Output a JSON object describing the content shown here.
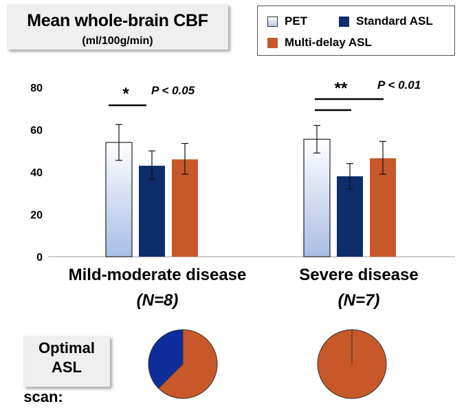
{
  "title": {
    "main": "Mean whole-brain CBF",
    "sub": "(ml/100g/min)"
  },
  "legend": [
    {
      "label": "PET",
      "color": "#dbe4f5"
    },
    {
      "label": "Standard ASL",
      "color": "#0d2d6b"
    },
    {
      "label": "Multi-delay ASL",
      "color": "#c8582a"
    }
  ],
  "chart_data": {
    "type": "bar",
    "title": "Mean whole-brain CBF",
    "ylabel": "ml/100g/min",
    "ylim": [
      0,
      80
    ],
    "yticks": [
      "0",
      "20",
      "40",
      "60",
      "80"
    ],
    "groups": [
      {
        "label": "Mild-moderate disease",
        "n_label": "(N=8)",
        "significance": "*",
        "p_label": "P < 0.05"
      },
      {
        "label": "Severe disease",
        "n_label": "(N=7)",
        "significance": "**",
        "p_label": "P < 0.01"
      }
    ],
    "series": [
      {
        "name": "PET",
        "values": [
          54,
          55.5
        ],
        "err_low": [
          45.5,
          49
        ],
        "err_high": [
          62.5,
          62
        ]
      },
      {
        "name": "Standard ASL",
        "values": [
          43,
          38
        ],
        "err_low": [
          36.5,
          32
        ],
        "err_high": [
          50,
          44
        ]
      },
      {
        "name": "Multi-delay ASL",
        "values": [
          46,
          46.5
        ],
        "err_low": [
          39,
          39
        ],
        "err_high": [
          53.5,
          54.5
        ]
      }
    ]
  },
  "optimal": {
    "label_lines": [
      "Optimal",
      "ASL"
    ],
    "label_last": "scan:",
    "pies": [
      {
        "group": "Mild-moderate disease",
        "slices": [
          {
            "name": "Standard ASL",
            "value": 3,
            "color": "#0d2d9b"
          },
          {
            "name": "Multi-delay ASL",
            "value": 5,
            "color": "#c8582a"
          }
        ]
      },
      {
        "group": "Severe disease",
        "slices": [
          {
            "name": "Multi-delay ASL",
            "value": 7,
            "color": "#c8582a"
          }
        ]
      }
    ]
  }
}
